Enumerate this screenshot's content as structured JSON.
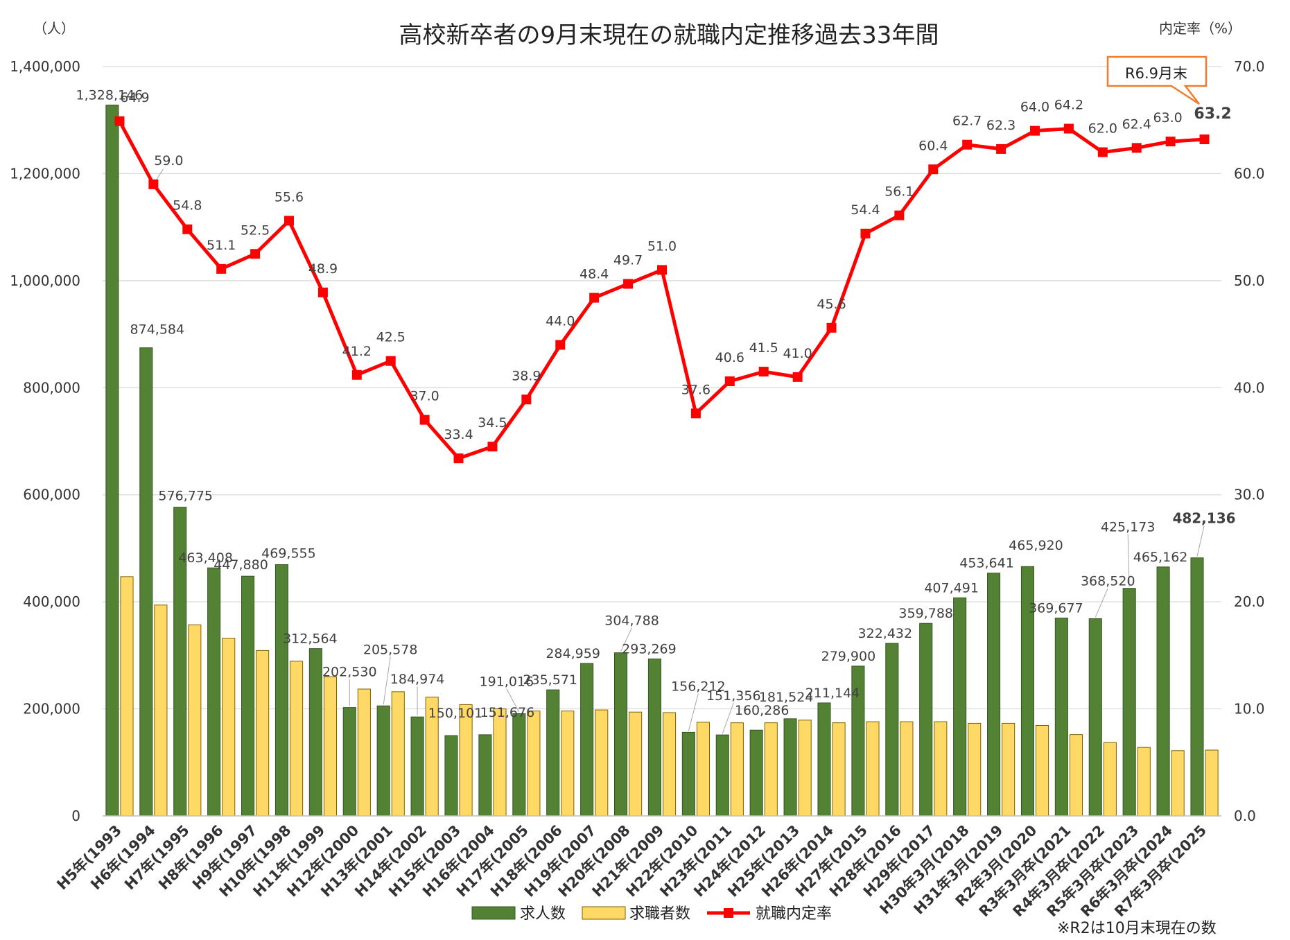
{
  "chart_data": {
    "type": "bar",
    "title": "高校新卒者の9月末現在の就職内定推移過去33年間",
    "y_left_unit": "（人）",
    "y_right_unit": "内定率（%）",
    "ylim_left": [
      0,
      1400000
    ],
    "ylim_right": [
      0,
      70
    ],
    "y_left_ticks": [
      "0",
      "200,000",
      "400,000",
      "600,000",
      "800,000",
      "1,000,000",
      "1,200,000",
      "1,400,000"
    ],
    "y_right_ticks": [
      "0.0",
      "10.0",
      "20.0",
      "30.0",
      "40.0",
      "50.0",
      "60.0",
      "70.0"
    ],
    "categories": [
      "H5年(1993",
      "H6年(1994",
      "H7年(1995",
      "H8年(1996",
      "H9年(1997",
      "H10年(1998",
      "H11年(1999",
      "H12年(2000",
      "H13年(2001",
      "H14年(2002",
      "H15年(2003",
      "H16年(2004",
      "H17年(2005",
      "H18年(2006",
      "H19年(2007",
      "H20年(2008",
      "H21年(2009",
      "H22年(2010",
      "H23年(2011",
      "H24年(2012",
      "H25年(2013",
      "H26年(2014",
      "H27年(2015",
      "H28年(2016",
      "H29年(2017",
      "H30年3月(2018",
      "H31年3月(2019",
      "R2年3月(2020",
      "R3年3月卒(2021",
      "R4年3月卒(2022",
      "R5年3月卒(2023",
      "R6年3月卒(2024",
      "R7年3月卒(2025"
    ],
    "series": [
      {
        "name": "求人数",
        "type": "bar",
        "axis": "left",
        "color": "#548235",
        "values": [
          1328146,
          874584,
          576775,
          463408,
          447880,
          469555,
          312564,
          202530,
          205578,
          184974,
          150101,
          151676,
          191016,
          235571,
          284959,
          304788,
          293269,
          156212,
          151356,
          160286,
          181524,
          211144,
          279900,
          322432,
          359788,
          407491,
          453641,
          465920,
          369677,
          368520,
          425173,
          465162,
          482136
        ],
        "labels": [
          "1,328,146",
          "874,584",
          "576,775",
          "463,408",
          "447,880",
          "469,555",
          "312,564",
          "202,530",
          "205,578",
          "184,974",
          "150,101",
          "151,676",
          "191,016",
          "235,571",
          "284,959",
          "304,788",
          "293,269",
          "156,212",
          "151,356",
          "160,286",
          "181,524",
          "211,144",
          "279,900",
          "322,432",
          "359,788",
          "407,491",
          "453,641",
          "465,920",
          "369,677",
          "368,520",
          "425,173",
          "465,162",
          "482,136"
        ]
      },
      {
        "name": "求職者数",
        "type": "bar",
        "axis": "left",
        "color": "#FFD966",
        "values": [
          447000,
          394000,
          357000,
          332000,
          309000,
          289000,
          260000,
          237000,
          232000,
          222000,
          208000,
          200000,
          196000,
          196000,
          198000,
          194000,
          193000,
          175000,
          174000,
          174000,
          179000,
          174000,
          176000,
          176000,
          176000,
          173000,
          173000,
          169000,
          152000,
          137000,
          128000,
          122000,
          123000
        ]
      },
      {
        "name": "就職内定率",
        "type": "line",
        "axis": "right",
        "color": "#FF0000",
        "values": [
          64.9,
          59.0,
          54.8,
          51.1,
          52.5,
          55.6,
          48.9,
          41.2,
          42.5,
          37.0,
          33.4,
          34.5,
          38.9,
          44.0,
          48.4,
          49.7,
          51.0,
          37.6,
          40.6,
          41.5,
          41.0,
          45.6,
          54.4,
          56.1,
          60.4,
          62.7,
          62.3,
          64.0,
          64.2,
          62.0,
          62.4,
          63.0,
          63.2
        ],
        "labels": [
          "64.9",
          "59.0",
          "54.8",
          "51.1",
          "52.5",
          "55.6",
          "48.9",
          "41.2",
          "42.5",
          "37.0",
          "33.4",
          "34.5",
          "38.9",
          "44.0",
          "48.4",
          "49.7",
          "51.0",
          "37.6",
          "40.6",
          "41.5",
          "41.0",
          "45.6",
          "54.4",
          "56.1",
          "60.4",
          "62.7",
          "62.3",
          "64.0",
          "64.2",
          "62.0",
          "62.4",
          "63.0",
          "63.2"
        ]
      }
    ],
    "callout": "R6.9月末",
    "note": "※R2は10月末現在の数",
    "grid": true,
    "legend_position": "bottom"
  }
}
